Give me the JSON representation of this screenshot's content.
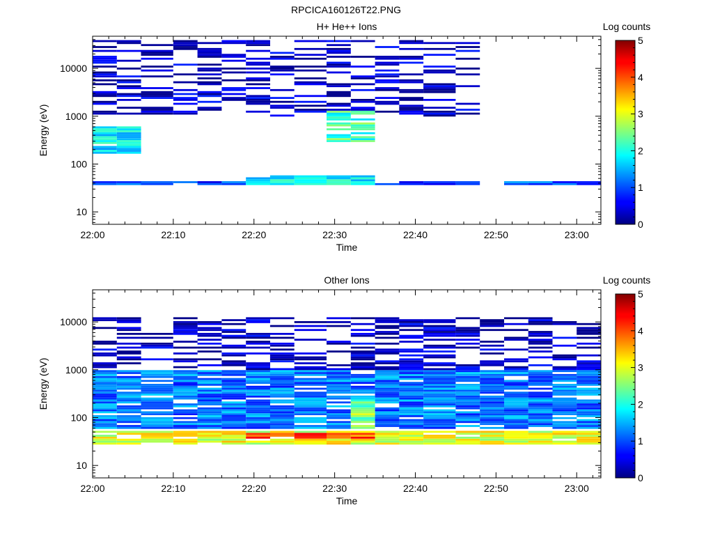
{
  "figure": {
    "title": "RPCICA160126T22.PNG"
  },
  "chart_data": [
    {
      "type": "heatmap",
      "title": "H+ He++ Ions",
      "xlabel": "Time",
      "ylabel": "Energy (eV)",
      "y_scale": "log",
      "ylim": [
        5.5,
        47000
      ],
      "xlim": [
        "22:00",
        "23:03"
      ],
      "x_ticks": [
        "22:00",
        "22:10",
        "22:20",
        "22:30",
        "22:40",
        "22:50",
        "23:00"
      ],
      "y_ticks": [
        "10",
        "100",
        "1000",
        "10000"
      ],
      "colorbar": {
        "label": "Log counts",
        "range": [
          0,
          5
        ],
        "ticks": [
          "0",
          "1",
          "2",
          "3",
          "4",
          "5"
        ],
        "colormap": "jet"
      },
      "time_bins": [
        "22:00",
        "22:03",
        "22:06",
        "22:10",
        "22:13",
        "22:16",
        "22:19",
        "22:22",
        "22:25",
        "22:29",
        "22:32",
        "22:35",
        "22:38",
        "22:41",
        "22:45",
        "22:48",
        "22:51",
        "22:54",
        "22:57",
        "23:00"
      ],
      "features": [
        {
          "energy_range_eV": [
            150,
            600
          ],
          "time_range": [
            "22:00",
            "22:06"
          ],
          "log_counts": 1.8
        },
        {
          "energy_range_eV": [
            300,
            1300
          ],
          "time_range": [
            "22:29",
            "22:35"
          ],
          "log_counts": 2.2
        },
        {
          "energy_range_eV": [
            35,
            60
          ],
          "time_range": [
            "22:19",
            "22:35"
          ],
          "log_counts": 1.9
        },
        {
          "energy_range_eV": [
            35,
            45
          ],
          "time_range": [
            "22:00",
            "23:03"
          ],
          "log_counts": 1.0
        },
        {
          "energy_range_eV": [
            1000,
            40000
          ],
          "time_range": [
            "22:00",
            "22:48"
          ],
          "log_counts": 0.3
        }
      ]
    },
    {
      "type": "heatmap",
      "title": "Other Ions",
      "xlabel": "Time",
      "ylabel": "Energy (eV)",
      "y_scale": "log",
      "ylim": [
        5.5,
        47000
      ],
      "xlim": [
        "22:00",
        "23:03"
      ],
      "x_ticks": [
        "22:00",
        "22:10",
        "22:20",
        "22:30",
        "22:40",
        "22:50",
        "23:00"
      ],
      "y_ticks": [
        "10",
        "100",
        "1000",
        "10000"
      ],
      "colorbar": {
        "label": "Log counts",
        "range": [
          0,
          5
        ],
        "ticks": [
          "0",
          "1",
          "2",
          "3",
          "4",
          "5"
        ],
        "colormap": "jet"
      },
      "time_bins": [
        "22:00",
        "22:03",
        "22:06",
        "22:10",
        "22:13",
        "22:16",
        "22:19",
        "22:22",
        "22:25",
        "22:29",
        "22:32",
        "22:35",
        "22:38",
        "22:41",
        "22:45",
        "22:48",
        "22:51",
        "22:54",
        "22:57",
        "23:00"
      ],
      "features": [
        {
          "energy_range_eV": [
            28,
            55
          ],
          "time_range": [
            "22:00",
            "23:03"
          ],
          "log_counts": 3.0
        },
        {
          "energy_range_eV": [
            35,
            50
          ],
          "time_range": [
            "22:19",
            "22:35"
          ],
          "log_counts": 4.0
        },
        {
          "energy_range_eV": [
            60,
            1000
          ],
          "time_range": [
            "22:00",
            "23:03"
          ],
          "log_counts": 1.2
        },
        {
          "energy_range_eV": [
            60,
            250
          ],
          "time_range": [
            "22:32",
            "22:35"
          ],
          "log_counts": 2.5
        },
        {
          "energy_range_eV": [
            1000,
            12000
          ],
          "time_range": [
            "22:00",
            "23:03"
          ],
          "log_counts": 0.3
        }
      ]
    }
  ]
}
